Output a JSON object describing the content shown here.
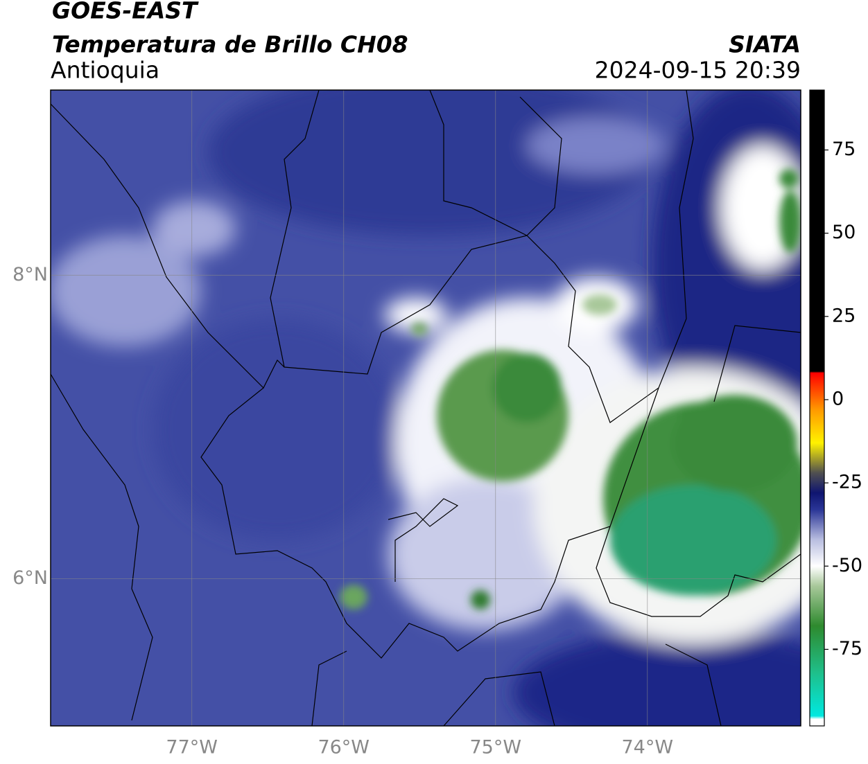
{
  "header": {
    "title": "GOES-EAST",
    "subtitle": "Temperatura de Brillo CH08",
    "region": "Antioquia",
    "source": "SIATA",
    "datetime": "2024-09-15 20:39"
  },
  "map": {
    "lonlim": [
      -77.93,
      -72.99
    ],
    "latlim": [
      5.03,
      9.22
    ],
    "lonticks": [
      {
        "value": -77,
        "label": "77°W"
      },
      {
        "value": -76,
        "label": "76°W"
      },
      {
        "value": -75,
        "label": "75°W"
      },
      {
        "value": -74,
        "label": "74°W"
      }
    ],
    "latticks": [
      {
        "value": 8,
        "label": "8°N"
      },
      {
        "value": 6,
        "label": "6°N"
      }
    ]
  },
  "colorbar": {
    "lim": [
      -98,
      93
    ],
    "ticks": [
      75,
      50,
      25,
      0,
      -25,
      -50,
      -75
    ],
    "stops": [
      {
        "value": -98,
        "color": "#ffffff"
      },
      {
        "value": -96,
        "color": "#ffffff"
      },
      {
        "value": -95,
        "color": "#00e8e0"
      },
      {
        "value": -82,
        "color": "#1fbf8a"
      },
      {
        "value": -68,
        "color": "#2e8a2e"
      },
      {
        "value": -56,
        "color": "#a8c89a"
      },
      {
        "value": -50,
        "color": "#ffffff"
      },
      {
        "value": -42,
        "color": "#b8bde0"
      },
      {
        "value": -33,
        "color": "#2a3596"
      },
      {
        "value": -28,
        "color": "#0f1570"
      },
      {
        "value": -22,
        "color": "#505050"
      },
      {
        "value": -13,
        "color": "#fff200"
      },
      {
        "value": -3,
        "color": "#ff9900"
      },
      {
        "value": 8,
        "color": "#ff0000"
      },
      {
        "value": 8.5,
        "color": "#000000"
      },
      {
        "value": 93,
        "color": "#000000"
      }
    ]
  }
}
